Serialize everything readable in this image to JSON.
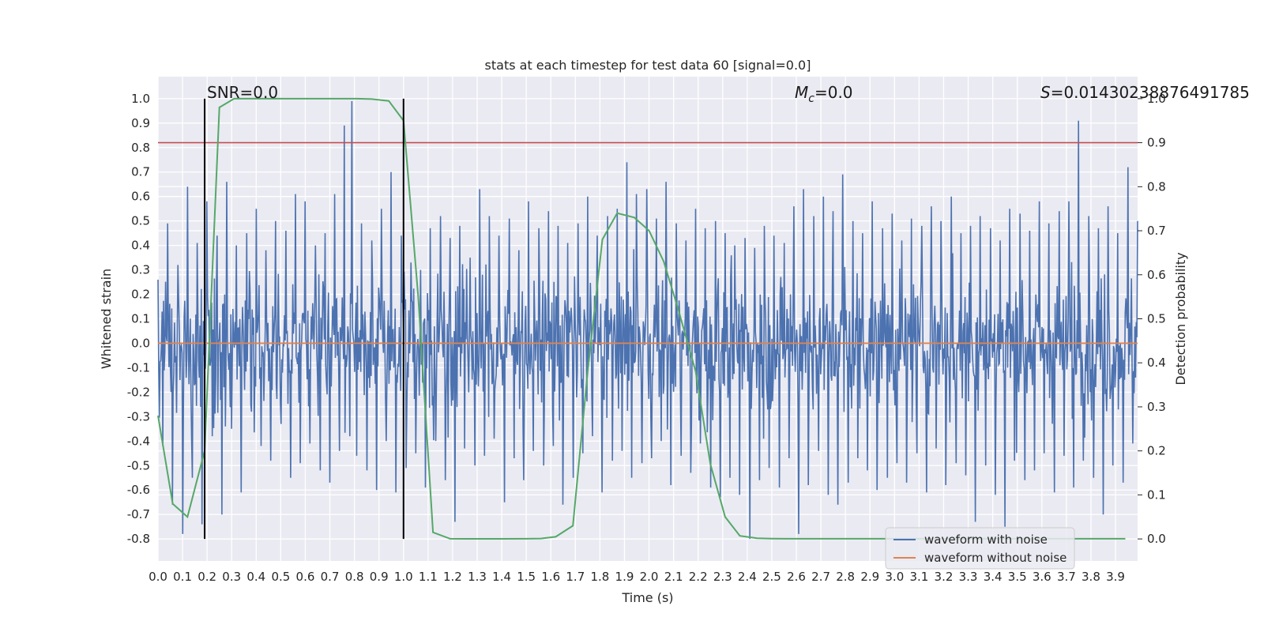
{
  "chart_data": {
    "type": "line",
    "title": "stats at each timestep for test data 60 [signal=0.0]",
    "xlabel": "Time (s)",
    "ylabel": "Whitened strain",
    "y2label": "Detection probability",
    "xlim": [
      0.0,
      3.99
    ],
    "ylim": [
      -0.89,
      1.09
    ],
    "y2lim": [
      -0.05,
      1.05
    ],
    "xticks": [
      "0.0",
      "0.1",
      "0.2",
      "0.3",
      "0.4",
      "0.5",
      "0.6",
      "0.7",
      "0.8",
      "0.9",
      "1.0",
      "1.1",
      "1.2",
      "1.3",
      "1.4",
      "1.5",
      "1.6",
      "1.7",
      "1.8",
      "1.9",
      "2.0",
      "2.1",
      "2.2",
      "2.3",
      "2.4",
      "2.5",
      "2.6",
      "2.7",
      "2.8",
      "2.9",
      "3.0",
      "3.1",
      "3.2",
      "3.3",
      "3.4",
      "3.5",
      "3.6",
      "3.7",
      "3.8",
      "3.9"
    ],
    "yticks": [
      "-0.8",
      "-0.7",
      "-0.6",
      "-0.5",
      "-0.4",
      "-0.3",
      "-0.2",
      "-0.1",
      "0.0",
      "0.1",
      "0.2",
      "0.3",
      "0.4",
      "0.5",
      "0.6",
      "0.7",
      "0.8",
      "0.9",
      "1.0"
    ],
    "y2ticks": [
      "0.0",
      "0.1",
      "0.2",
      "0.3",
      "0.4",
      "0.5",
      "0.6",
      "0.7",
      "0.8",
      "0.9",
      "1.0"
    ],
    "annotations": {
      "snr": "SNR=0.0",
      "mc_symbol": "M",
      "mc_sub": "c",
      "mc_value": "=0.0",
      "s_symbol": "S",
      "s_value": "=0.01430238876491785"
    },
    "vertical_markers": [
      0.19,
      1.0
    ],
    "threshold": {
      "axis": "right",
      "value": 0.9,
      "color": "#c44e52"
    },
    "colors": {
      "background": "#eaeaf2",
      "grid": "#ffffff",
      "noisy": "#4c72b0",
      "clean": "#dd8452",
      "probability": "#55a868",
      "marker": "#000000"
    },
    "legend": {
      "position": "lower right",
      "entries": [
        {
          "label": "waveform with noise",
          "color": "#4c72b0"
        },
        {
          "label": "waveform without noise",
          "color": "#dd8452"
        }
      ]
    },
    "series": [
      {
        "name": "waveform with noise",
        "axis": "left",
        "note": "dense whitened noise, approx. zero-mean; sampled as x-step/value pairs",
        "points": [
          [
            0.0,
            0.26
          ],
          [
            0.02,
            -0.42
          ],
          [
            0.04,
            0.49
          ],
          [
            0.06,
            -0.66
          ],
          [
            0.08,
            0.32
          ],
          [
            0.1,
            -0.78
          ],
          [
            0.12,
            0.64
          ],
          [
            0.14,
            -0.55
          ],
          [
            0.16,
            0.41
          ],
          [
            0.18,
            -0.74
          ],
          [
            0.2,
            0.58
          ],
          [
            0.22,
            -0.38
          ],
          [
            0.24,
            0.44
          ],
          [
            0.26,
            -0.7
          ],
          [
            0.28,
            0.66
          ],
          [
            0.3,
            -0.35
          ],
          [
            0.32,
            0.4
          ],
          [
            0.34,
            -0.61
          ],
          [
            0.36,
            0.45
          ],
          [
            0.38,
            -0.28
          ],
          [
            0.4,
            0.55
          ],
          [
            0.42,
            -0.42
          ],
          [
            0.44,
            0.38
          ],
          [
            0.46,
            -0.48
          ],
          [
            0.48,
            0.5
          ],
          [
            0.5,
            -0.33
          ],
          [
            0.52,
            0.46
          ],
          [
            0.54,
            -0.55
          ],
          [
            0.56,
            0.61
          ],
          [
            0.58,
            -0.49
          ],
          [
            0.6,
            0.58
          ],
          [
            0.62,
            -0.41
          ],
          [
            0.64,
            0.4
          ],
          [
            0.66,
            -0.52
          ],
          [
            0.68,
            0.45
          ],
          [
            0.7,
            -0.57
          ],
          [
            0.72,
            0.61
          ],
          [
            0.74,
            -0.44
          ],
          [
            0.76,
            0.89
          ],
          [
            0.78,
            -0.38
          ],
          [
            0.79,
            0.99
          ],
          [
            0.81,
            -0.46
          ],
          [
            0.83,
            0.49
          ],
          [
            0.85,
            -0.52
          ],
          [
            0.87,
            0.42
          ],
          [
            0.89,
            -0.6
          ],
          [
            0.91,
            0.55
          ],
          [
            0.93,
            -0.4
          ],
          [
            0.95,
            0.7
          ],
          [
            0.97,
            -0.61
          ],
          [
            0.99,
            0.44
          ],
          [
            1.01,
            -0.51
          ],
          [
            1.03,
            0.33
          ],
          [
            1.05,
            -0.45
          ],
          [
            1.07,
            0.3
          ],
          [
            1.09,
            -0.59
          ],
          [
            1.11,
            0.47
          ],
          [
            1.13,
            -0.4
          ],
          [
            1.15,
            0.52
          ],
          [
            1.17,
            -0.56
          ],
          [
            1.19,
            0.43
          ],
          [
            1.21,
            -0.73
          ],
          [
            1.23,
            0.48
          ],
          [
            1.25,
            -0.43
          ],
          [
            1.27,
            0.35
          ],
          [
            1.29,
            -0.5
          ],
          [
            1.31,
            0.63
          ],
          [
            1.33,
            -0.46
          ],
          [
            1.35,
            0.52
          ],
          [
            1.37,
            -0.39
          ],
          [
            1.39,
            0.44
          ],
          [
            1.41,
            -0.65
          ],
          [
            1.43,
            0.51
          ],
          [
            1.45,
            -0.47
          ],
          [
            1.47,
            0.38
          ],
          [
            1.49,
            -0.56
          ],
          [
            1.51,
            0.58
          ],
          [
            1.53,
            -0.44
          ],
          [
            1.55,
            0.47
          ],
          [
            1.57,
            -0.5
          ],
          [
            1.59,
            0.54
          ],
          [
            1.61,
            -0.42
          ],
          [
            1.63,
            0.48
          ],
          [
            1.65,
            -0.66
          ],
          [
            1.67,
            0.41
          ],
          [
            1.69,
            -0.55
          ],
          [
            1.71,
            0.49
          ],
          [
            1.73,
            -0.45
          ],
          [
            1.75,
            0.6
          ],
          [
            1.77,
            -0.38
          ],
          [
            1.79,
            0.44
          ],
          [
            1.81,
            -0.61
          ],
          [
            1.83,
            0.52
          ],
          [
            1.85,
            -0.48
          ],
          [
            1.87,
            0.55
          ],
          [
            1.89,
            -0.44
          ],
          [
            1.91,
            0.74
          ],
          [
            1.93,
            -0.55
          ],
          [
            1.95,
            0.61
          ],
          [
            1.97,
            -0.49
          ],
          [
            1.99,
            0.63
          ],
          [
            2.01,
            -0.47
          ],
          [
            2.03,
            0.51
          ],
          [
            2.05,
            -0.4
          ],
          [
            2.07,
            0.66
          ],
          [
            2.09,
            -0.58
          ],
          [
            2.11,
            0.49
          ],
          [
            2.13,
            -0.46
          ],
          [
            2.15,
            0.42
          ],
          [
            2.17,
            -0.53
          ],
          [
            2.19,
            0.55
          ],
          [
            2.21,
            -0.41
          ],
          [
            2.23,
            0.47
          ],
          [
            2.25,
            -0.59
          ],
          [
            2.27,
            0.5
          ],
          [
            2.29,
            -0.63
          ],
          [
            2.31,
            0.45
          ],
          [
            2.33,
            -0.55
          ],
          [
            2.35,
            0.4
          ],
          [
            2.37,
            -0.62
          ],
          [
            2.39,
            0.43
          ],
          [
            2.41,
            -0.8
          ],
          [
            2.43,
            0.39
          ],
          [
            2.45,
            -0.56
          ],
          [
            2.47,
            0.48
          ],
          [
            2.49,
            -0.51
          ],
          [
            2.51,
            0.44
          ],
          [
            2.53,
            -0.59
          ],
          [
            2.55,
            0.41
          ],
          [
            2.57,
            -0.47
          ],
          [
            2.59,
            0.56
          ],
          [
            2.61,
            -0.78
          ],
          [
            2.63,
            0.63
          ],
          [
            2.65,
            -0.58
          ],
          [
            2.67,
            0.52
          ],
          [
            2.69,
            -0.44
          ],
          [
            2.71,
            0.6
          ],
          [
            2.73,
            -0.62
          ],
          [
            2.75,
            0.54
          ],
          [
            2.77,
            -0.66
          ],
          [
            2.79,
            0.69
          ],
          [
            2.81,
            -0.57
          ],
          [
            2.83,
            0.5
          ],
          [
            2.85,
            -0.47
          ],
          [
            2.87,
            0.45
          ],
          [
            2.89,
            -0.52
          ],
          [
            2.91,
            0.58
          ],
          [
            2.93,
            -0.6
          ],
          [
            2.95,
            0.47
          ],
          [
            2.97,
            -0.55
          ],
          [
            2.99,
            0.53
          ],
          [
            3.01,
            -0.49
          ],
          [
            3.03,
            0.42
          ],
          [
            3.05,
            -0.57
          ],
          [
            3.07,
            0.51
          ],
          [
            3.09,
            -0.45
          ],
          [
            3.11,
            0.48
          ],
          [
            3.13,
            -0.61
          ],
          [
            3.15,
            0.56
          ],
          [
            3.17,
            -0.43
          ],
          [
            3.19,
            0.5
          ],
          [
            3.21,
            -0.58
          ],
          [
            3.23,
            0.6
          ],
          [
            3.25,
            -0.49
          ],
          [
            3.27,
            0.45
          ],
          [
            3.29,
            -0.54
          ],
          [
            3.31,
            0.48
          ],
          [
            3.33,
            -0.73
          ],
          [
            3.35,
            0.52
          ],
          [
            3.37,
            -0.5
          ],
          [
            3.39,
            0.47
          ],
          [
            3.41,
            -0.62
          ],
          [
            3.43,
            0.42
          ],
          [
            3.45,
            -0.75
          ],
          [
            3.47,
            0.55
          ],
          [
            3.49,
            -0.48
          ],
          [
            3.51,
            0.53
          ],
          [
            3.53,
            -0.56
          ],
          [
            3.55,
            0.46
          ],
          [
            3.57,
            -0.52
          ],
          [
            3.59,
            0.58
          ],
          [
            3.61,
            -0.45
          ],
          [
            3.63,
            0.49
          ],
          [
            3.65,
            -0.61
          ],
          [
            3.67,
            0.54
          ],
          [
            3.69,
            -0.46
          ],
          [
            3.71,
            0.58
          ],
          [
            3.73,
            -0.59
          ],
          [
            3.75,
            0.91
          ],
          [
            3.77,
            -0.48
          ],
          [
            3.79,
            0.52
          ],
          [
            3.81,
            -0.55
          ],
          [
            3.83,
            0.47
          ],
          [
            3.85,
            -0.7
          ],
          [
            3.87,
            0.56
          ],
          [
            3.89,
            -0.5
          ],
          [
            3.91,
            0.45
          ],
          [
            3.93,
            -0.57
          ],
          [
            3.95,
            0.72
          ],
          [
            3.97,
            -0.41
          ],
          [
            3.99,
            0.5
          ]
        ]
      },
      {
        "name": "waveform without noise",
        "axis": "left",
        "x": [
          0.0,
          3.99
        ],
        "values": [
          0.0,
          0.0
        ]
      },
      {
        "name": "detection probability",
        "axis": "right",
        "x": [
          0.0,
          0.06,
          0.12,
          0.19,
          0.25,
          0.31,
          0.44,
          0.62,
          0.81,
          0.87,
          0.94,
          1.0,
          1.06,
          1.12,
          1.19,
          1.25,
          1.37,
          1.5,
          1.56,
          1.62,
          1.69,
          1.75,
          1.81,
          1.87,
          1.94,
          2.0,
          2.06,
          2.12,
          2.19,
          2.25,
          2.31,
          2.37,
          2.44,
          2.5,
          2.56,
          2.62,
          2.75,
          3.0,
          3.5,
          3.94
        ],
        "values": [
          0.28,
          0.08,
          0.05,
          0.2,
          0.98,
          1.0,
          1.0,
          1.0,
          1.0,
          0.999,
          0.995,
          0.95,
          0.55,
          0.015,
          0.0005,
          0.0003,
          0.0003,
          0.0005,
          0.001,
          0.005,
          0.03,
          0.38,
          0.68,
          0.74,
          0.73,
          0.7,
          0.63,
          0.52,
          0.38,
          0.17,
          0.05,
          0.007,
          0.0015,
          0.0006,
          0.0005,
          0.0005,
          0.0005,
          0.0005,
          0.0005,
          0.0005
        ]
      }
    ]
  }
}
